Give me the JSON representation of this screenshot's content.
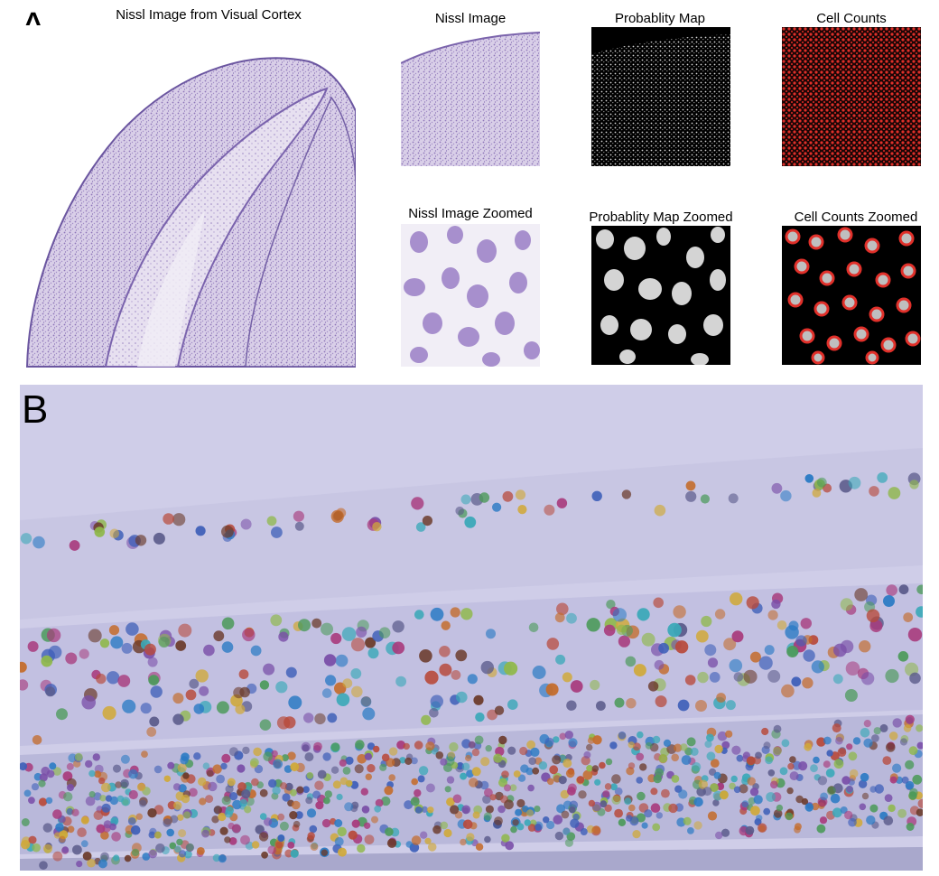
{
  "figure": {
    "panel_a": {
      "letter": "A",
      "main_caption": "Nissl Image from Visual Cortex",
      "thumbnails": [
        {
          "caption": "Nissl Image"
        },
        {
          "caption": "Probablity Map"
        },
        {
          "caption": "Cell Counts"
        },
        {
          "caption": "Nissl Image Zoomed"
        },
        {
          "caption": "Probablity Map Zoomed"
        },
        {
          "caption": "Cell Counts Zoomed"
        }
      ]
    },
    "panel_b": {
      "letter": "B"
    }
  },
  "colors": {
    "nissl_purple": "#8c72b8",
    "nissl_bg": "#f4f1f6",
    "cell_count_red": "#e0302a",
    "panel_b_bg": "#c9c7e4"
  }
}
